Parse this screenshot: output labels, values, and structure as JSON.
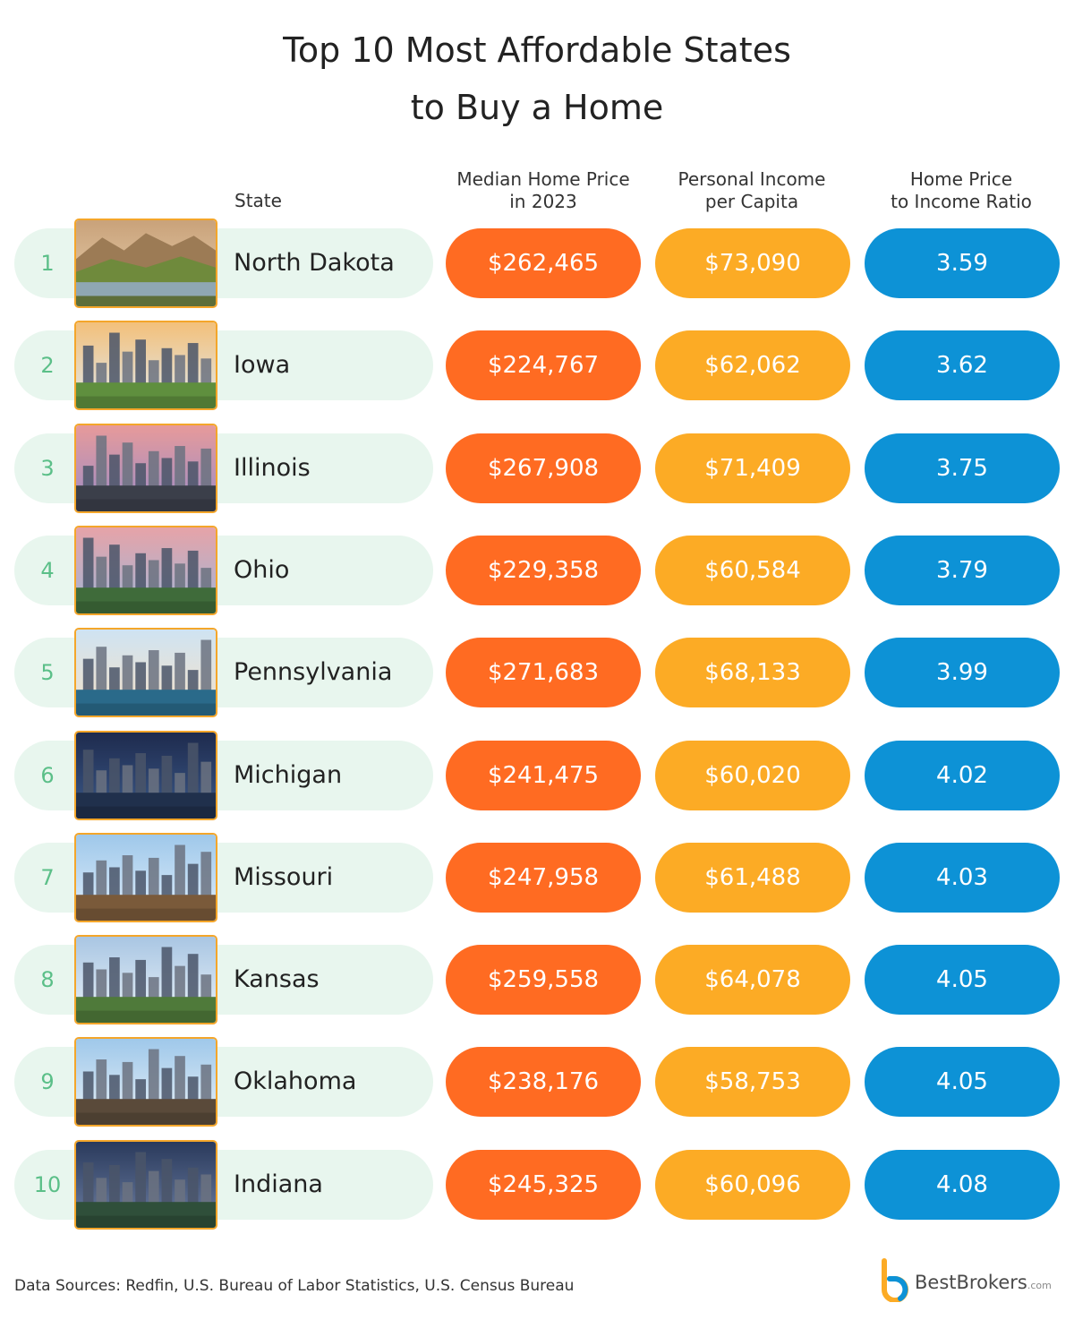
{
  "title_lines": [
    "Top 10 Most Affordable States",
    "to Buy a Home"
  ],
  "headers": {
    "state": "State",
    "price": [
      "Median Home Price",
      "in 2023"
    ],
    "income": [
      "Personal Income",
      "per Capita"
    ],
    "ratio": [
      "Home Price",
      "to Income Ratio"
    ]
  },
  "colors": {
    "price": "#ff6b22",
    "income": "#fcab25",
    "ratio": "#0d92d6",
    "name_background": "#e8f6ee",
    "rank": "#5bbf88",
    "photo_frame": "#f4a62a"
  },
  "chart_data": {
    "type": "table",
    "columns": [
      "State",
      "Median Home Price in 2023",
      "Personal Income per Capita",
      "Home Price to Income Ratio"
    ],
    "rows": [
      {
        "rank": "1",
        "state": "North Dakota",
        "price": "$262,465",
        "income": "$73,090",
        "ratio": "3.59",
        "photo": "badlands-landscape"
      },
      {
        "rank": "2",
        "state": "Iowa",
        "price": "$224,767",
        "income": "$62,062",
        "ratio": "3.62",
        "photo": "city-skyline"
      },
      {
        "rank": "3",
        "state": "Illinois",
        "price": "$267,908",
        "income": "$71,409",
        "ratio": "3.75",
        "photo": "city-skyline"
      },
      {
        "rank": "4",
        "state": "Ohio",
        "price": "$229,358",
        "income": "$60,584",
        "ratio": "3.79",
        "photo": "city-skyline"
      },
      {
        "rank": "5",
        "state": "Pennsylvania",
        "price": "$271,683",
        "income": "$68,133",
        "ratio": "3.99",
        "photo": "city-skyline"
      },
      {
        "rank": "6",
        "state": "Michigan",
        "price": "$241,475",
        "income": "$60,020",
        "ratio": "4.02",
        "photo": "city-skyline"
      },
      {
        "rank": "7",
        "state": "Missouri",
        "price": "$247,958",
        "income": "$61,488",
        "ratio": "4.03",
        "photo": "city-skyline"
      },
      {
        "rank": "8",
        "state": "Kansas",
        "price": "$259,558",
        "income": "$64,078",
        "ratio": "4.05",
        "photo": "city-skyline"
      },
      {
        "rank": "9",
        "state": "Oklahoma",
        "price": "$238,176",
        "income": "$58,753",
        "ratio": "4.05",
        "photo": "city-skyline"
      },
      {
        "rank": "10",
        "state": "Indiana",
        "price": "$245,325",
        "income": "$60,096",
        "ratio": "4.08",
        "photo": "city-skyline"
      }
    ]
  },
  "footer": {
    "source": "Data Sources: Redfin, U.S. Bureau of Labor Statistics, U.S. Census Bureau",
    "brand_name": "BestBrokers",
    "brand_suffix": ".com",
    "brand_icon": "bestbrokers-logo-icon"
  }
}
